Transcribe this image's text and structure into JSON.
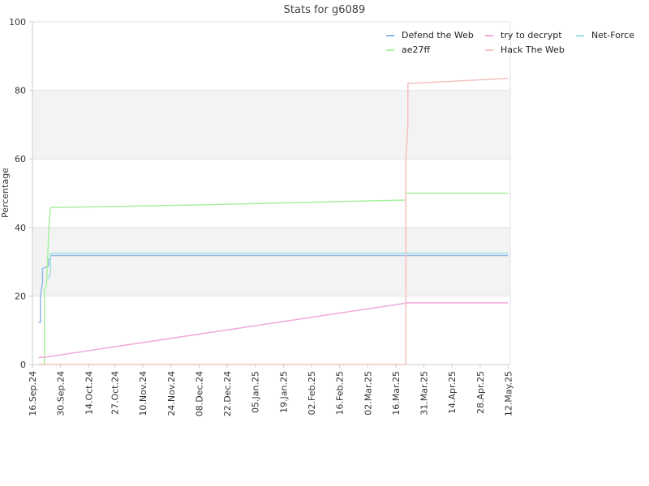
{
  "chart_data": {
    "type": "line",
    "title": "Stats for g6089",
    "xlabel": "",
    "ylabel": "Percentage",
    "ylim": [
      0,
      100
    ],
    "xlim": [
      "2024-09-16",
      "2025-05-12"
    ],
    "yticks": [
      0,
      20,
      40,
      60,
      80,
      100
    ],
    "xticks": [
      {
        "date": "2024-09-16",
        "label": "16.Sep.24"
      },
      {
        "date": "2024-09-30",
        "label": "30.Sep.24"
      },
      {
        "date": "2024-10-14",
        "label": "14.Oct.24"
      },
      {
        "date": "2024-10-27",
        "label": "27.Oct.24"
      },
      {
        "date": "2024-11-10",
        "label": "10.Nov.24"
      },
      {
        "date": "2024-11-24",
        "label": "24.Nov.24"
      },
      {
        "date": "2024-12-08",
        "label": "08.Dec.24"
      },
      {
        "date": "2024-12-22",
        "label": "22.Dec.24"
      },
      {
        "date": "2025-01-05",
        "label": "05.Jan.25"
      },
      {
        "date": "2025-01-19",
        "label": "19.Jan.25"
      },
      {
        "date": "2025-02-02",
        "label": "02.Feb.25"
      },
      {
        "date": "2025-02-16",
        "label": "16.Feb.25"
      },
      {
        "date": "2025-03-02",
        "label": "02.Mar.25"
      },
      {
        "date": "2025-03-16",
        "label": "16.Mar.25"
      },
      {
        "date": "2025-03-30",
        "label": "31.Mar.25"
      },
      {
        "date": "2025-04-13",
        "label": "14.Apr.25"
      },
      {
        "date": "2025-04-27",
        "label": "28.Apr.25"
      },
      {
        "date": "2025-05-11",
        "label": "12.May.25"
      }
    ],
    "grid": "horizontal",
    "banded_background": true,
    "legend_position": "top-right",
    "series": [
      {
        "name": "Defend the Web",
        "color": "#8fb8e8",
        "points": [
          [
            "2024-09-19",
            12.3
          ],
          [
            "2024-09-20",
            12.3
          ],
          [
            "2024-09-20",
            20
          ],
          [
            "2024-09-21",
            24
          ],
          [
            "2024-09-21",
            28
          ],
          [
            "2024-09-23",
            28.5
          ],
          [
            "2024-09-24",
            28.8
          ],
          [
            "2024-09-24",
            30.5
          ],
          [
            "2024-09-25",
            31
          ],
          [
            "2024-09-25",
            31.8
          ],
          [
            "2025-05-11",
            31.8
          ]
        ]
      },
      {
        "name": "ae27ff",
        "color": "#a8f0a0",
        "points": [
          [
            "2024-09-19",
            0
          ],
          [
            "2024-09-22",
            0
          ],
          [
            "2024-09-22",
            22
          ],
          [
            "2024-09-23",
            23
          ],
          [
            "2024-09-24",
            37
          ],
          [
            "2024-09-24",
            39
          ],
          [
            "2024-09-25",
            45.8
          ],
          [
            "2024-12-02",
            46.5
          ],
          [
            "2025-03-21",
            48
          ],
          [
            "2025-03-21",
            50
          ],
          [
            "2025-05-11",
            50
          ]
        ]
      },
      {
        "name": "try to decrypt",
        "color": "#f0a8d8",
        "points": [
          [
            "2024-09-19",
            2
          ],
          [
            "2024-09-23",
            2.2
          ],
          [
            "2025-03-22",
            18
          ],
          [
            "2025-05-11",
            18
          ]
        ]
      },
      {
        "name": "Hack The Web",
        "color": "#f5c0c0",
        "points": [
          [
            "2024-09-19",
            0
          ],
          [
            "2025-03-21",
            0
          ],
          [
            "2025-03-21",
            60
          ],
          [
            "2025-03-22",
            70
          ],
          [
            "2025-03-22",
            73
          ],
          [
            "2025-03-22",
            82
          ],
          [
            "2025-05-11",
            83.5
          ]
        ]
      },
      {
        "name": "Net-Force",
        "color": "#a0e0e0",
        "points": [
          [
            "2024-09-24",
            25
          ],
          [
            "2024-09-25",
            27
          ],
          [
            "2024-09-25",
            32.5
          ],
          [
            "2025-05-11",
            32.5
          ]
        ]
      }
    ],
    "legend_order": [
      "Defend the Web",
      "try to decrypt",
      "Net-Force",
      "ae27ff",
      "Hack The Web"
    ]
  }
}
